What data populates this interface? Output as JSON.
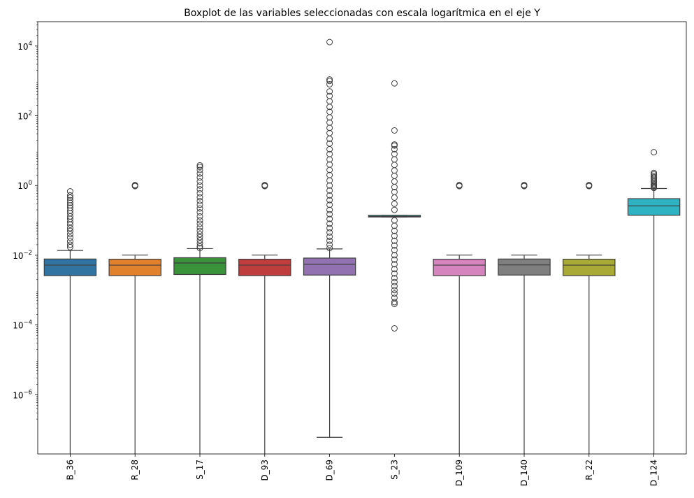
{
  "chart_data": {
    "type": "boxplot",
    "title": "Boxplot de las variables seleccionadas con escala logarítmica en el eje Y",
    "xlabel": "",
    "ylabel": "",
    "y_scale": "log",
    "ylim": [
      2e-08,
      50000
    ],
    "y_ticks": [
      {
        "value": 1e-06,
        "base": "10",
        "exp": "−6"
      },
      {
        "value": 0.0001,
        "base": "10",
        "exp": "−4"
      },
      {
        "value": 0.01,
        "base": "10",
        "exp": "−2"
      },
      {
        "value": 1,
        "base": "10",
        "exp": "0"
      },
      {
        "value": 100,
        "base": "10",
        "exp": "2"
      },
      {
        "value": 10000,
        "base": "10",
        "exp": "4"
      }
    ],
    "grid": false,
    "legend": "none",
    "categories": [
      "B_36",
      "R_28",
      "S_17",
      "D_93",
      "D_69",
      "S_23",
      "D_109",
      "D_140",
      "R_22",
      "D_124"
    ],
    "series": [
      {
        "category": "B_36",
        "color": "#3274a1",
        "q1": 0.0026,
        "median": 0.0052,
        "q3": 0.0078,
        "whisker_low": 1e-09,
        "whisker_high": 0.0137,
        "outliers": [
          0.017,
          0.02,
          0.025,
          0.032,
          0.04,
          0.05,
          0.06,
          0.075,
          0.09,
          0.11,
          0.13,
          0.16,
          0.19,
          0.23,
          0.27,
          0.32,
          0.38,
          0.45,
          0.52,
          0.68
        ]
      },
      {
        "category": "R_28",
        "color": "#e1812c",
        "q1": 0.0026,
        "median": 0.0052,
        "q3": 0.0077,
        "whisker_low": 1e-09,
        "whisker_high": 0.0101,
        "outliers": [
          0.96,
          1.0,
          1.03
        ]
      },
      {
        "category": "S_17",
        "color": "#3a923a",
        "q1": 0.0028,
        "median": 0.006,
        "q3": 0.0085,
        "whisker_low": 1e-09,
        "whisker_high": 0.0155,
        "outliers": [
          0.016,
          0.018,
          0.022,
          0.027,
          0.033,
          0.04,
          0.05,
          0.063,
          0.08,
          0.1,
          0.13,
          0.17,
          0.22,
          0.28,
          0.36,
          0.46,
          0.6,
          0.78,
          1.0,
          1.3,
          1.7,
          2.2,
          2.8,
          3.4,
          3.8
        ]
      },
      {
        "category": "D_93",
        "color": "#c03d3e",
        "q1": 0.0026,
        "median": 0.0052,
        "q3": 0.0077,
        "whisker_low": 1e-09,
        "whisker_high": 0.0101,
        "outliers": [
          0.96,
          1.0,
          1.03
        ]
      },
      {
        "category": "D_69",
        "color": "#9372b2",
        "q1": 0.0027,
        "median": 0.0055,
        "q3": 0.0083,
        "whisker_low": 6e-08,
        "whisker_high": 0.0152,
        "outliers": [
          0.016,
          0.02,
          0.026,
          0.034,
          0.045,
          0.06,
          0.08,
          0.11,
          0.15,
          0.2,
          0.28,
          0.38,
          0.52,
          0.72,
          1.0,
          1.4,
          2.0,
          2.8,
          4,
          5.6,
          8,
          11,
          16,
          22,
          32,
          45,
          64,
          90,
          130,
          180,
          260,
          370,
          500,
          800,
          1000,
          1100,
          13000
        ]
      },
      {
        "category": "S_23",
        "color": "#3bb7c8",
        "q1": 0.125,
        "median": 0.13,
        "q3": 0.14,
        "whisker_low": 0.125,
        "whisker_high": 0.14,
        "outliers": [
          8e-05,
          0.0004,
          0.00045,
          0.0006,
          0.0008,
          0.001,
          0.0013,
          0.0017,
          0.0022,
          0.003,
          0.004,
          0.0055,
          0.0075,
          0.01,
          0.014,
          0.019,
          0.026,
          0.036,
          0.05,
          0.07,
          0.1,
          0.2,
          0.3,
          0.45,
          0.65,
          0.9,
          1.3,
          1.9,
          2.7,
          3.9,
          5.6,
          8,
          11,
          14,
          15,
          38,
          850
        ]
      },
      {
        "category": "D_109",
        "color": "#d684bd",
        "q1": 0.0026,
        "median": 0.0052,
        "q3": 0.0077,
        "whisker_low": 1e-09,
        "whisker_high": 0.0101,
        "outliers": [
          0.96,
          1.0,
          1.03
        ]
      },
      {
        "category": "D_140",
        "color": "#7f7f7f",
        "q1": 0.0027,
        "median": 0.0053,
        "q3": 0.0078,
        "whisker_low": 1e-09,
        "whisker_high": 0.0101,
        "outliers": [
          0.96,
          1.0,
          1.03
        ]
      },
      {
        "category": "R_22",
        "color": "#a9aa35",
        "q1": 0.0026,
        "median": 0.0052,
        "q3": 0.0077,
        "whisker_low": 1e-09,
        "whisker_high": 0.0101,
        "outliers": [
          0.96,
          1.0,
          1.03
        ]
      },
      {
        "category": "D_124",
        "color": "#2eb3c3",
        "q1": 0.14,
        "median": 0.26,
        "q3": 0.42,
        "whisker_low": 1e-09,
        "whisker_high": 0.82,
        "outliers": [
          0.85,
          0.9,
          0.96,
          1.03,
          1.1,
          1.2,
          1.32,
          1.45,
          1.6,
          1.75,
          1.9,
          2.1,
          2.3,
          9
        ]
      }
    ]
  }
}
